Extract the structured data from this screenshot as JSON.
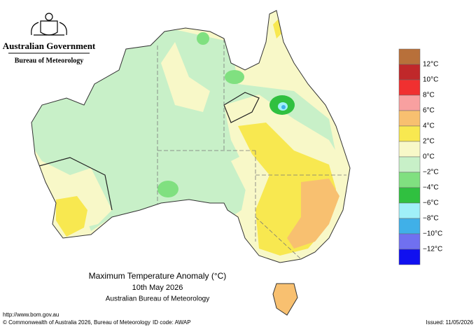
{
  "header": {
    "government": "Australian Government",
    "bureau": "Bureau of Meteorology"
  },
  "legend": {
    "labels": [
      "12°C",
      "10°C",
      "8°C",
      "6°C",
      "4°C",
      "2°C",
      "0°C",
      "−2°C",
      "−4°C",
      "−6°C",
      "−8°C",
      "−10°C",
      "−12°C"
    ]
  },
  "caption": {
    "title": "Maximum Temperature Anomaly (°C)",
    "date": "10th May 2026",
    "source": "Australian Bureau of Meteorology"
  },
  "footer": {
    "url": "http://www.bom.gov.au",
    "copyright": "© Commonwealth of Australia 2026, Bureau of Meteorology",
    "id_code": "ID code: AWAP",
    "issued": "Issued: 11/05/2026"
  }
}
